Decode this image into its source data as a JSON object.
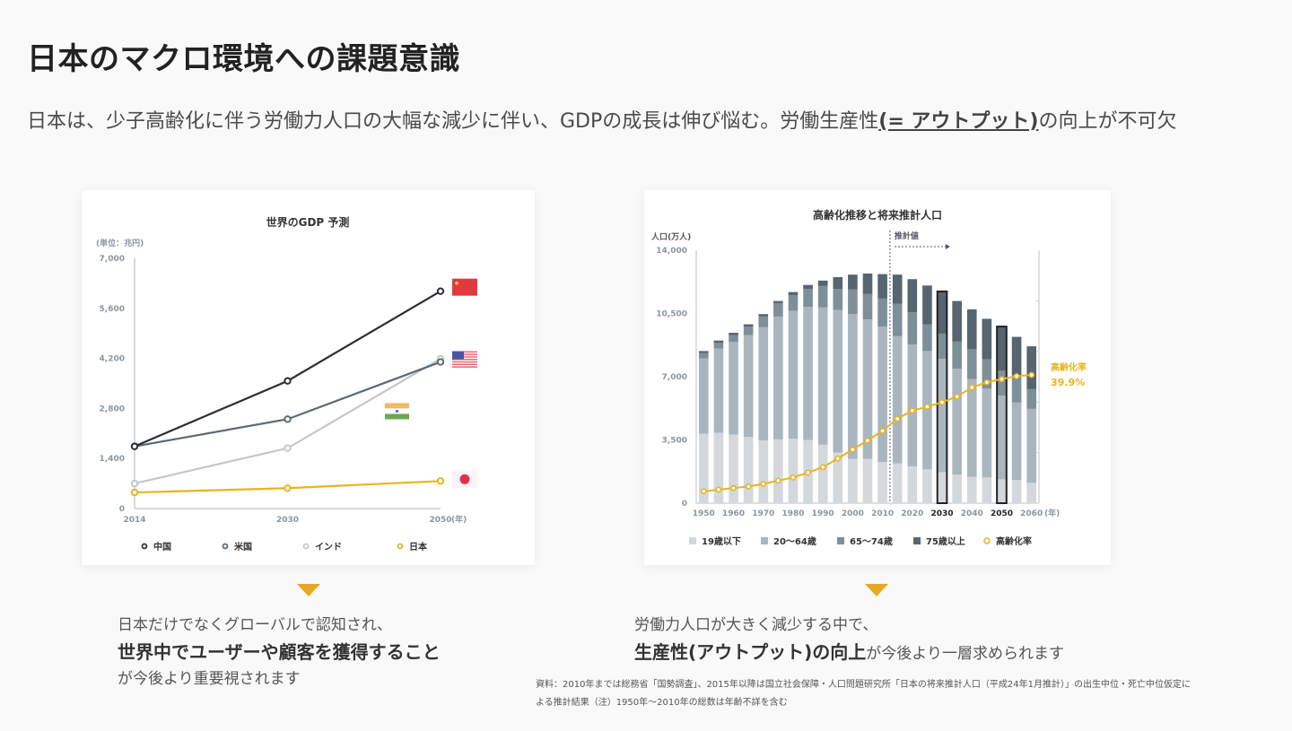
{
  "page": {
    "title": "日本のマクロ環境への課題意識",
    "lead_pre": "日本は、少子高齢化に伴う労働力人口の大幅な減少に伴い、GDPの成長は伸び悩む。労働生産性",
    "lead_em": "(= アウトプット)",
    "lead_post": "の向上が不可欠"
  },
  "conclusions": {
    "left": {
      "line1": "日本だけでなくグローバルで認知され、",
      "line2_bold": "世界中でユーザーや顧客を獲得すること",
      "line3": "が今後より重要視されます"
    },
    "right": {
      "line1": "労働力人口が大きく減少する中で、",
      "line2_bold": "生産性(アウトプット)の向上",
      "line2_rest": "が今後より一層求められます"
    }
  },
  "source_note": {
    "line1": "資料：2010年までは総務省「国勢調査」、2015年以降は国立社会保障・人口問題研究所「日本の将来推計人口（平成24年1月推計）」の出生中位・死亡中位仮定に",
    "line2": "よる推計結果（注）1950年〜2010年の総数は年齢不詳を含む"
  },
  "colors": {
    "accent": "#e8a824",
    "china": "#2b2f33",
    "us": "#5d6a72",
    "india": "#c4c8cc",
    "japan": "#e8b420",
    "u19": "#d3d8dd",
    "a20_64": "#a9b6bf",
    "a65_74": "#7e8f99",
    "a75": "#56656f",
    "aging": "#e8b420"
  },
  "chart_data": [
    {
      "type": "line",
      "title": "世界のGDP 予測",
      "unit_label": "(単位：兆円)",
      "xlabel": "(年)",
      "x": [
        "2014",
        "2030",
        "2050"
      ],
      "ylim": [
        0,
        7000
      ],
      "yticks": [
        0,
        1400,
        2800,
        4200,
        5600,
        7000
      ],
      "ytick_labels": [
        "0",
        "1,400",
        "2,800",
        "4,200",
        "5,600",
        "7,000"
      ],
      "series": [
        {
          "name": "中国",
          "key": "china",
          "flag": "china-flag",
          "values": [
            1740,
            3570,
            6080
          ]
        },
        {
          "name": "米国",
          "key": "us",
          "flag": "us-flag",
          "values": [
            1740,
            2500,
            4100
          ]
        },
        {
          "name": "インド",
          "key": "india",
          "flag": "india-flag",
          "values": [
            700,
            1690,
            4190
          ]
        },
        {
          "name": "日本",
          "key": "japan",
          "flag": "japan-flag",
          "values": [
            450,
            570,
            770
          ]
        }
      ],
      "legend": [
        "中国",
        "米国",
        "インド",
        "日本"
      ],
      "legend_position": "bottom",
      "grid": false
    },
    {
      "type": "bar",
      "stacked": true,
      "title": "高齢化推移と将来推計人口",
      "ylabel": "人口(万人)",
      "xlabel": "(年)",
      "projection_label": "推計値",
      "projection_start_after": "2010",
      "ylim": [
        0,
        14000
      ],
      "yticks": [
        0,
        3500,
        7000,
        10500,
        14000
      ],
      "ytick_labels": [
        "0",
        "3,500",
        "7,000",
        "10,500",
        "14,000"
      ],
      "categories": [
        "1950",
        "1955",
        "1960",
        "1965",
        "1970",
        "1975",
        "1980",
        "1985",
        "1990",
        "1995",
        "2000",
        "2005",
        "2010",
        "2015",
        "2020",
        "2025",
        "2030",
        "2035",
        "2040",
        "2045",
        "2050",
        "2055",
        "2060"
      ],
      "xtick_labels": [
        "1950",
        "",
        "1960",
        "",
        "1970",
        "",
        "1980",
        "",
        "1990",
        "",
        "2000",
        "",
        "2010",
        "",
        "2020",
        "",
        "2030",
        "",
        "2040",
        "",
        "2050",
        "",
        "2060"
      ],
      "highlighted": [
        "2030",
        "2050"
      ],
      "series": [
        {
          "name": "19歳以下",
          "key": "u19",
          "values": [
            3850,
            3900,
            3800,
            3665,
            3470,
            3530,
            3565,
            3500,
            3235,
            2805,
            2445,
            2445,
            2280,
            2195,
            2030,
            1865,
            1715,
            1585,
            1455,
            1420,
            1320,
            1290,
            1125
          ]
        },
        {
          "name": "20〜64歳",
          "key": "a20_64",
          "values": [
            4160,
            4655,
            5120,
            5645,
            6270,
            6800,
            7080,
            7360,
            7595,
            7890,
            8025,
            7725,
            7495,
            7050,
            6750,
            6555,
            6275,
            5860,
            5415,
            4920,
            4625,
            4280,
            4095
          ]
        },
        {
          "name": "65〜74歳",
          "key": "a65_74",
          "values": [
            300,
            315,
            380,
            460,
            595,
            745,
            875,
            990,
            1190,
            1155,
            1355,
            1420,
            1550,
            1785,
            1785,
            1485,
            1385,
            1500,
            1650,
            1620,
            1385,
            1520,
            1090
          ]
        },
        {
          "name": "75歳以上",
          "key": "a75",
          "values": [
            110,
            130,
            130,
            130,
            130,
            115,
            165,
            230,
            300,
            660,
            825,
            1120,
            1355,
            1620,
            1835,
            2145,
            2345,
            2245,
            2210,
            2245,
            2445,
            2115,
            2375
          ]
        }
      ],
      "line_series": {
        "name": "高齢化率",
        "unit": "%",
        "values": [
          3.7,
          4.2,
          4.7,
          5.2,
          6.0,
          7.0,
          8.0,
          9.5,
          11.2,
          13.9,
          16.7,
          19.5,
          22.5,
          26.3,
          28.8,
          30.0,
          31.4,
          33.2,
          36.0,
          37.6,
          38.6,
          39.5,
          39.9
        ],
        "end_label": "高齢化率",
        "end_value_label": "39.9%"
      },
      "legend": [
        "19歳以下",
        "20〜64歳",
        "65〜74歳",
        "75歳以上",
        "高齢化率"
      ],
      "legend_position": "bottom",
      "grid": false
    }
  ]
}
